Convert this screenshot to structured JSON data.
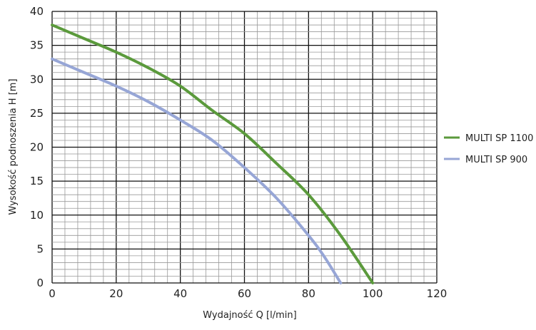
{
  "chart_data": {
    "type": "line",
    "title": "",
    "xlabel": "Wydajność Q [l/min]",
    "ylabel": "Wysokość podnoszenia H [m]",
    "xlim": [
      0,
      120
    ],
    "ylim": [
      0,
      40
    ],
    "xticks": [
      0,
      20,
      40,
      60,
      80,
      100,
      120
    ],
    "yticks": [
      0,
      5,
      10,
      15,
      20,
      25,
      30,
      35,
      40
    ],
    "grid": true,
    "legend_position": "right",
    "series": [
      {
        "name": "MULTI SP 1100",
        "color": "#5b9a3c",
        "x": [
          0,
          10,
          20,
          30,
          40,
          50,
          60,
          70,
          80,
          90,
          100
        ],
        "y": [
          38,
          36,
          34,
          31.7,
          29,
          25.4,
          22,
          17.6,
          13,
          7,
          0
        ]
      },
      {
        "name": "MULTI SP 900",
        "color": "#97a6d6",
        "x": [
          0,
          10,
          20,
          30,
          40,
          50,
          60,
          70,
          80,
          85,
          90
        ],
        "y": [
          33,
          31,
          29,
          26.7,
          24,
          21,
          17,
          12.5,
          7,
          3.8,
          0
        ]
      }
    ]
  }
}
